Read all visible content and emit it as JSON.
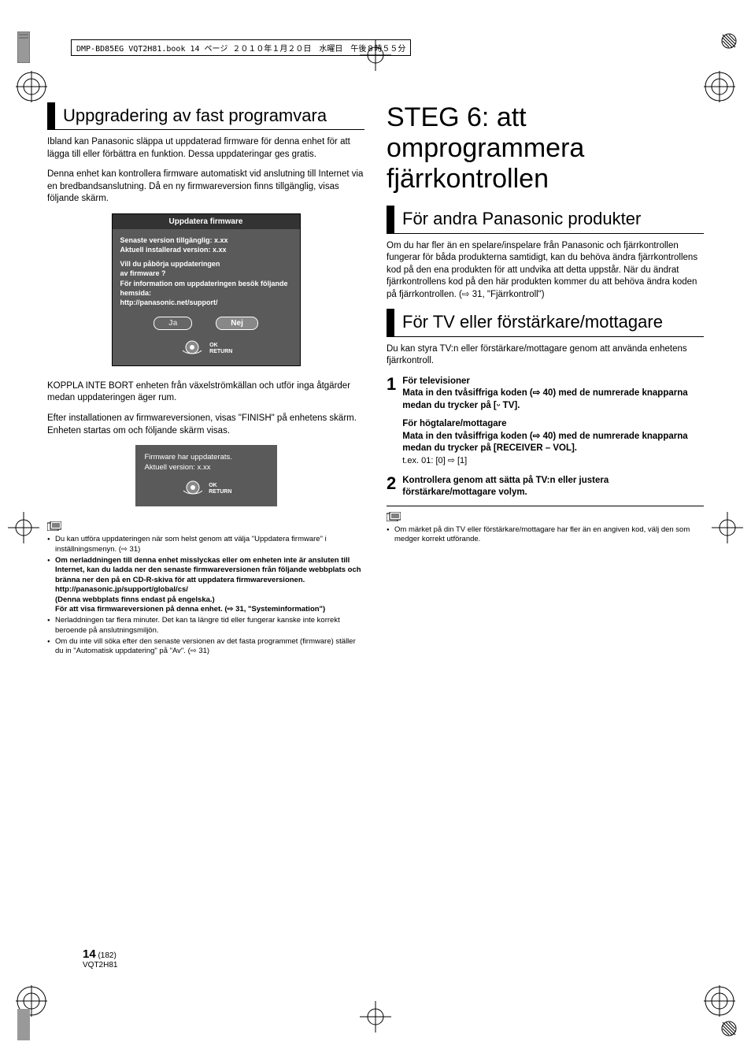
{
  "print_header": "DMP-BD85EG VQT2H81.book  14 ページ  ２０１０年１月２０日　水曜日　午後８時５５分",
  "left": {
    "h2": "Uppgradering av fast programvara",
    "p1": "Ibland kan Panasonic släppa ut uppdaterad firmware för denna enhet för att lägga till eller förbättra en funktion. Dessa uppdateringar ges gratis.",
    "p2": "Denna enhet kan kontrollera firmware automatiskt vid anslutning till Internet via en bredbandsanslutning. Då en ny firmwareversion finns tillgänglig, visas följande skärm.",
    "fw": {
      "title": "Uppdatera firmware",
      "line1": "Senaste version tillgänglig: x.xx",
      "line2": "Aktuell installerad version: x.xx",
      "q1": "Vill du påbörja uppdateringen",
      "q2": "av firmware ?",
      "info1": "För information om uppdateringen besök följande",
      "info2": "hemsida:",
      "url": "http://panasonic.net/support/",
      "btn_yes": "Ja",
      "btn_no": "Nej",
      "ok": "OK",
      "return": "RETURN"
    },
    "p3": "KOPPLA INTE BORT enheten från växelströmkällan och utför inga åtgärder medan uppdateringen äger rum.",
    "p4": "Efter installationen av firmwareversionen, visas \"FINISH\" på enhetens skärm. Enheten startas om och följande skärm visas.",
    "finish": {
      "l1": "Firmware har uppdaterats.",
      "l2": "Aktuell version: x.xx",
      "ok": "OK",
      "return": "RETURN"
    },
    "notes": [
      {
        "t": "Du kan utföra uppdateringen när som helst genom att välja \"Uppdatera firmware\" i inställningsmenyn. (⇨ 31)",
        "b": false
      },
      {
        "t": "Om nerladdningen till denna enhet misslyckas eller om enheten inte är ansluten till Internet, kan du ladda ner den senaste firmwareversionen från följande webbplats och bränna ner den på en CD-R-skiva för att uppdatera firmwareversionen.\nhttp://panasonic.jp/support/global/cs/\n(Denna webbplats finns endast på engelska.)\nFör att visa firmwareversionen på denna enhet. (⇨ 31, \"Systeminformation\")",
        "b": true
      },
      {
        "t": "Nerladdningen tar flera minuter. Det kan ta längre tid eller fungerar kanske inte korrekt beroende på anslutningsmiljön.",
        "b": false
      },
      {
        "t": "Om du inte vill söka efter den senaste versionen av det fasta programmet (firmware) ställer du in \"Automatisk uppdatering\" på \"Av\". (⇨ 31)",
        "b": false
      }
    ]
  },
  "right": {
    "h1": "STEG 6: att omprogrammera fjärrkontrollen",
    "h2a": "För andra Panasonic produkter",
    "pa": "Om du har fler än en spelare/inspelare från Panasonic och fjärrkontrollen fungerar för båda produkterna samtidigt, kan du behöva ändra fjärrkontrollens kod på den ena produkten för att undvika att detta uppstår. När du ändrat fjärrkontrollens kod på den här produkten kommer du att behöva ändra koden på fjärrkontrollen. (⇨ 31, \"Fjärrkontroll\")",
    "h2b": "För TV eller förstärkare/mottagare",
    "pb": "Du kan styra TV:n eller förstärkare/mottagare genom att använda enhetens fjärrkontroll.",
    "step1": {
      "intro": "För televisioner",
      "bold": "Mata in den tvåsiffriga koden (⇨ 40) med de numrerade knapparna medan du trycker på [ᵕ TV].",
      "intro2": "För högtalare/mottagare",
      "bold2": "Mata in den tvåsiffriga koden (⇨ 40) med de numrerade knapparna medan du trycker på [RECEIVER – VOL].",
      "ex": "t.ex. 01: [0] ⇨ [1]"
    },
    "step2": "Kontrollera genom att sätta på TV:n eller justera förstärkare/mottagare volym.",
    "note": "Om märket på din TV eller förstärkare/mottagare har fler än en angiven kod, välj den som medger korrekt utförande."
  },
  "footer": {
    "page": "14",
    "seq": "(182)",
    "code": "VQT2H81"
  },
  "colors": {
    "dark": "#5a5a5a",
    "header": "#333333",
    "text": "#000000"
  }
}
